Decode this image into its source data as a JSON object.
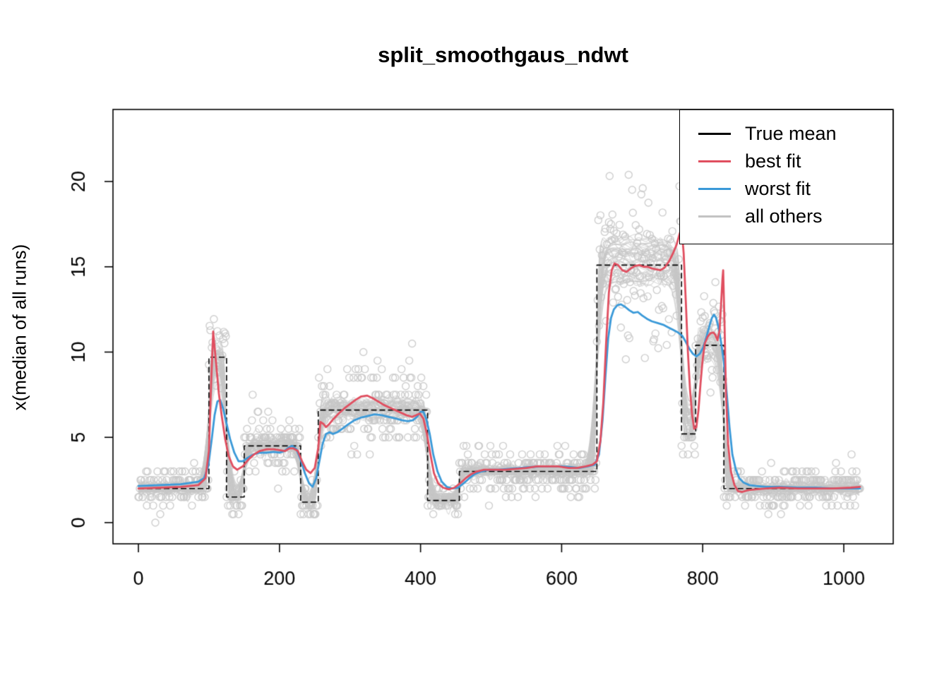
{
  "title": "split_smoothgaus_ndwt",
  "ylabel": "x(median of all runs)",
  "legend": {
    "items": [
      {
        "label": "True mean",
        "color": "#000000"
      },
      {
        "label": "best fit",
        "color": "#e04e5f"
      },
      {
        "label": "worst fit",
        "color": "#3a99d8"
      },
      {
        "label": "all others",
        "color": "#c3c3c3"
      }
    ]
  },
  "chart_data": {
    "type": "line",
    "title": "split_smoothgaus_ndwt",
    "xlabel": "",
    "ylabel": "x(median of all runs)",
    "xlim": [
      0,
      1024
    ],
    "ylim": [
      0,
      23.5
    ],
    "x_ticks": [
      0,
      200,
      400,
      600,
      800,
      1000
    ],
    "y_ticks": [
      0,
      5,
      10,
      15,
      20
    ],
    "n_points": 1024,
    "seed": 20,
    "true_mean_color": "#000000",
    "true_mean_segments": [
      {
        "from": 0,
        "to": 100,
        "level": 2.0
      },
      {
        "from": 100,
        "to": 125,
        "level": 9.7
      },
      {
        "from": 125,
        "to": 150,
        "level": 1.5
      },
      {
        "from": 150,
        "to": 230,
        "level": 4.5
      },
      {
        "from": 230,
        "to": 255,
        "level": 1.2
      },
      {
        "from": 255,
        "to": 410,
        "level": 6.6
      },
      {
        "from": 410,
        "to": 455,
        "level": 1.3
      },
      {
        "from": 455,
        "to": 650,
        "level": 3.0
      },
      {
        "from": 650,
        "to": 770,
        "level": 15.1
      },
      {
        "from": 770,
        "to": 790,
        "level": 5.2
      },
      {
        "from": 790,
        "to": 830,
        "level": 10.4
      },
      {
        "from": 830,
        "to": 1024,
        "level": 2.0
      }
    ],
    "scatter": {
      "color": "#c9c9c9",
      "radius": 5,
      "sd_intercept": 0.35,
      "sd_slope": 0.13,
      "band_round": 0.5
    },
    "others": {
      "name": "all others",
      "color": "#c6c6c6",
      "count": 48,
      "smooth_min": 2,
      "smooth_max": 9,
      "noise_sd": 0.7
    },
    "best_fit": {
      "name": "best fit",
      "color": "#e04e5f",
      "points": [
        [
          0,
          2.0
        ],
        [
          30,
          2.05
        ],
        [
          60,
          2.1
        ],
        [
          85,
          2.2
        ],
        [
          95,
          2.6
        ],
        [
          100,
          4.2
        ],
        [
          103,
          8.0
        ],
        [
          106,
          11.2
        ],
        [
          110,
          9.4
        ],
        [
          114,
          7.6
        ],
        [
          118,
          6.3
        ],
        [
          123,
          4.9
        ],
        [
          128,
          3.9
        ],
        [
          134,
          3.3
        ],
        [
          140,
          3.1
        ],
        [
          148,
          3.3
        ],
        [
          156,
          3.7
        ],
        [
          164,
          4.0
        ],
        [
          172,
          4.2
        ],
        [
          182,
          4.3
        ],
        [
          192,
          4.3
        ],
        [
          200,
          4.25
        ],
        [
          208,
          4.2
        ],
        [
          214,
          4.35
        ],
        [
          220,
          4.35
        ],
        [
          226,
          4.2
        ],
        [
          232,
          3.6
        ],
        [
          238,
          3.1
        ],
        [
          244,
          2.9
        ],
        [
          250,
          3.2
        ],
        [
          255,
          4.4
        ],
        [
          258,
          5.9
        ],
        [
          262,
          5.8
        ],
        [
          266,
          5.6
        ],
        [
          271,
          5.8
        ],
        [
          277,
          6.1
        ],
        [
          284,
          6.4
        ],
        [
          292,
          6.7
        ],
        [
          300,
          6.95
        ],
        [
          308,
          7.2
        ],
        [
          316,
          7.4
        ],
        [
          324,
          7.45
        ],
        [
          332,
          7.3
        ],
        [
          340,
          7.1
        ],
        [
          348,
          6.9
        ],
        [
          356,
          6.75
        ],
        [
          364,
          6.6
        ],
        [
          372,
          6.45
        ],
        [
          380,
          6.3
        ],
        [
          388,
          6.2
        ],
        [
          394,
          6.3
        ],
        [
          399,
          6.4
        ],
        [
          404,
          6.1
        ],
        [
          409,
          5.2
        ],
        [
          414,
          4.0
        ],
        [
          419,
          2.9
        ],
        [
          425,
          2.3
        ],
        [
          432,
          2.05
        ],
        [
          440,
          1.95
        ],
        [
          448,
          2.05
        ],
        [
          456,
          2.3
        ],
        [
          464,
          2.6
        ],
        [
          472,
          2.85
        ],
        [
          480,
          3.0
        ],
        [
          490,
          3.1
        ],
        [
          505,
          3.1
        ],
        [
          520,
          3.1
        ],
        [
          535,
          3.15
        ],
        [
          550,
          3.2
        ],
        [
          565,
          3.3
        ],
        [
          580,
          3.3
        ],
        [
          595,
          3.3
        ],
        [
          610,
          3.2
        ],
        [
          622,
          3.2
        ],
        [
          634,
          3.3
        ],
        [
          644,
          3.4
        ],
        [
          650,
          3.6
        ],
        [
          655,
          4.8
        ],
        [
          659,
          7.0
        ],
        [
          663,
          10.5
        ],
        [
          667,
          13.5
        ],
        [
          671,
          14.8
        ],
        [
          675,
          15.2
        ],
        [
          680,
          15.1
        ],
        [
          686,
          14.8
        ],
        [
          692,
          14.7
        ],
        [
          698,
          14.9
        ],
        [
          704,
          15.05
        ],
        [
          710,
          15.1
        ],
        [
          716,
          15.0
        ],
        [
          722,
          15.0
        ],
        [
          728,
          14.9
        ],
        [
          734,
          14.85
        ],
        [
          740,
          14.8
        ],
        [
          746,
          14.95
        ],
        [
          752,
          15.3
        ],
        [
          758,
          15.8
        ],
        [
          763,
          16.3
        ],
        [
          767,
          16.9
        ],
        [
          770,
          17.3
        ],
        [
          773,
          15.8
        ],
        [
          776,
          13.0
        ],
        [
          779,
          10.0
        ],
        [
          782,
          7.8
        ],
        [
          785,
          6.3
        ],
        [
          788,
          5.5
        ],
        [
          791,
          5.6
        ],
        [
          794,
          6.6
        ],
        [
          797,
          8.2
        ],
        [
          800,
          9.6
        ],
        [
          803,
          10.5
        ],
        [
          807,
          10.9
        ],
        [
          811,
          11.1
        ],
        [
          815,
          11.15
        ],
        [
          818,
          11.0
        ],
        [
          821,
          10.7
        ],
        [
          824,
          11.3
        ],
        [
          826,
          12.8
        ],
        [
          828,
          14.3
        ],
        [
          829,
          14.8
        ],
        [
          831,
          11.5
        ],
        [
          833,
          7.5
        ],
        [
          836,
          4.6
        ],
        [
          840,
          3.0
        ],
        [
          845,
          2.2
        ],
        [
          850,
          1.85
        ],
        [
          856,
          1.8
        ],
        [
          864,
          1.9
        ],
        [
          875,
          1.95
        ],
        [
          890,
          2.0
        ],
        [
          910,
          2.05
        ],
        [
          935,
          2.0
        ],
        [
          960,
          2.0
        ],
        [
          985,
          2.0
        ],
        [
          1010,
          2.05
        ],
        [
          1023,
          2.1
        ]
      ]
    },
    "worst_fit": {
      "name": "worst fit",
      "color": "#3a99d8",
      "points": [
        [
          0,
          2.15
        ],
        [
          30,
          2.2
        ],
        [
          60,
          2.25
        ],
        [
          85,
          2.4
        ],
        [
          93,
          2.6
        ],
        [
          99,
          3.3
        ],
        [
          104,
          4.9
        ],
        [
          108,
          6.3
        ],
        [
          112,
          7.1
        ],
        [
          116,
          7.2
        ],
        [
          120,
          6.7
        ],
        [
          125,
          5.8
        ],
        [
          130,
          4.9
        ],
        [
          136,
          4.1
        ],
        [
          142,
          3.6
        ],
        [
          148,
          3.6
        ],
        [
          155,
          3.8
        ],
        [
          163,
          4.0
        ],
        [
          172,
          4.1
        ],
        [
          182,
          4.1
        ],
        [
          192,
          4.15
        ],
        [
          200,
          4.1
        ],
        [
          207,
          4.2
        ],
        [
          213,
          4.4
        ],
        [
          218,
          4.5
        ],
        [
          224,
          4.3
        ],
        [
          230,
          3.7
        ],
        [
          236,
          2.9
        ],
        [
          242,
          2.3
        ],
        [
          247,
          2.1
        ],
        [
          252,
          2.6
        ],
        [
          257,
          3.7
        ],
        [
          261,
          4.6
        ],
        [
          266,
          5.2
        ],
        [
          271,
          5.3
        ],
        [
          276,
          5.2
        ],
        [
          282,
          5.3
        ],
        [
          289,
          5.5
        ],
        [
          297,
          5.75
        ],
        [
          306,
          6.0
        ],
        [
          315,
          6.15
        ],
        [
          325,
          6.25
        ],
        [
          335,
          6.35
        ],
        [
          345,
          6.3
        ],
        [
          355,
          6.2
        ],
        [
          365,
          6.1
        ],
        [
          374,
          6.0
        ],
        [
          382,
          5.95
        ],
        [
          389,
          6.0
        ],
        [
          395,
          6.2
        ],
        [
          400,
          6.5
        ],
        [
          404,
          6.5
        ],
        [
          408,
          6.1
        ],
        [
          413,
          5.2
        ],
        [
          418,
          4.0
        ],
        [
          424,
          3.0
        ],
        [
          430,
          2.4
        ],
        [
          437,
          2.1
        ],
        [
          445,
          2.0
        ],
        [
          453,
          2.05
        ],
        [
          461,
          2.3
        ],
        [
          469,
          2.6
        ],
        [
          477,
          2.85
        ],
        [
          486,
          3.0
        ],
        [
          497,
          3.1
        ],
        [
          510,
          3.1
        ],
        [
          525,
          3.15
        ],
        [
          540,
          3.2
        ],
        [
          555,
          3.25
        ],
        [
          570,
          3.3
        ],
        [
          585,
          3.3
        ],
        [
          600,
          3.3
        ],
        [
          613,
          3.25
        ],
        [
          625,
          3.2
        ],
        [
          637,
          3.3
        ],
        [
          647,
          3.4
        ],
        [
          653,
          4.0
        ],
        [
          658,
          6.0
        ],
        [
          662,
          8.5
        ],
        [
          666,
          10.8
        ],
        [
          670,
          12.0
        ],
        [
          674,
          12.5
        ],
        [
          679,
          12.75
        ],
        [
          684,
          12.8
        ],
        [
          690,
          12.65
        ],
        [
          696,
          12.45
        ],
        [
          702,
          12.3
        ],
        [
          708,
          12.35
        ],
        [
          714,
          12.15
        ],
        [
          721,
          11.95
        ],
        [
          728,
          11.8
        ],
        [
          736,
          11.7
        ],
        [
          744,
          11.6
        ],
        [
          751,
          11.45
        ],
        [
          758,
          11.3
        ],
        [
          765,
          11.15
        ],
        [
          771,
          10.95
        ],
        [
          776,
          10.6
        ],
        [
          781,
          10.2
        ],
        [
          786,
          9.9
        ],
        [
          791,
          9.75
        ],
        [
          796,
          9.9
        ],
        [
          801,
          10.3
        ],
        [
          806,
          11.0
        ],
        [
          810,
          11.6
        ],
        [
          813,
          12.0
        ],
        [
          816,
          12.2
        ],
        [
          819,
          12.0
        ],
        [
          822,
          11.5
        ],
        [
          826,
          10.6
        ],
        [
          830,
          9.4
        ],
        [
          834,
          7.6
        ],
        [
          838,
          5.6
        ],
        [
          842,
          4.0
        ],
        [
          847,
          3.1
        ],
        [
          852,
          2.6
        ],
        [
          858,
          2.35
        ],
        [
          866,
          2.2
        ],
        [
          876,
          2.15
        ],
        [
          890,
          2.1
        ],
        [
          910,
          2.1
        ],
        [
          935,
          2.05
        ],
        [
          960,
          2.05
        ],
        [
          985,
          2.0
        ],
        [
          1010,
          2.0
        ],
        [
          1023,
          2.0
        ]
      ]
    }
  }
}
